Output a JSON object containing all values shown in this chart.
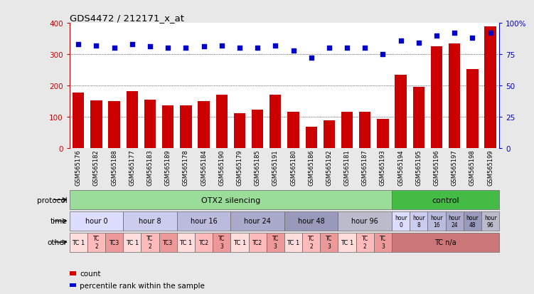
{
  "title": "GDS4472 / 212171_x_at",
  "samples": [
    "GSM565176",
    "GSM565182",
    "GSM565188",
    "GSM565177",
    "GSM565183",
    "GSM565189",
    "GSM565178",
    "GSM565184",
    "GSM565190",
    "GSM565179",
    "GSM565185",
    "GSM565191",
    "GSM565180",
    "GSM565186",
    "GSM565192",
    "GSM565181",
    "GSM565187",
    "GSM565193",
    "GSM565194",
    "GSM565195",
    "GSM565196",
    "GSM565197",
    "GSM565198",
    "GSM565199"
  ],
  "counts": [
    178,
    152,
    150,
    182,
    155,
    135,
    135,
    150,
    170,
    110,
    122,
    170,
    115,
    68,
    88,
    115,
    115,
    92,
    235,
    195,
    325,
    335,
    252,
    390
  ],
  "percentile_ranks": [
    83,
    82,
    80,
    83,
    81,
    80,
    80,
    81,
    82,
    80,
    80,
    82,
    78,
    72,
    80,
    80,
    80,
    75,
    86,
    84,
    90,
    92,
    88,
    92
  ],
  "bar_color": "#cc0000",
  "dot_color": "#0000cc",
  "label_color_left": "#cc0000",
  "label_color_right": "#0000cc",
  "bg_color": "#e8e8e8",
  "plot_bg": "#ffffff",
  "protocol_otx2_color": "#99dd99",
  "protocol_ctrl_color": "#44bb44",
  "time_colors": [
    "#ddddff",
    "#ccccee",
    "#bbbbdd",
    "#aaaacc",
    "#9999bb",
    "#bbbbcc"
  ],
  "other_color_tc1": "#ffdddd",
  "other_color_tc2": "#ffbbbb",
  "other_color_tc3": "#ee9999",
  "other_color_tcna": "#cc7777"
}
